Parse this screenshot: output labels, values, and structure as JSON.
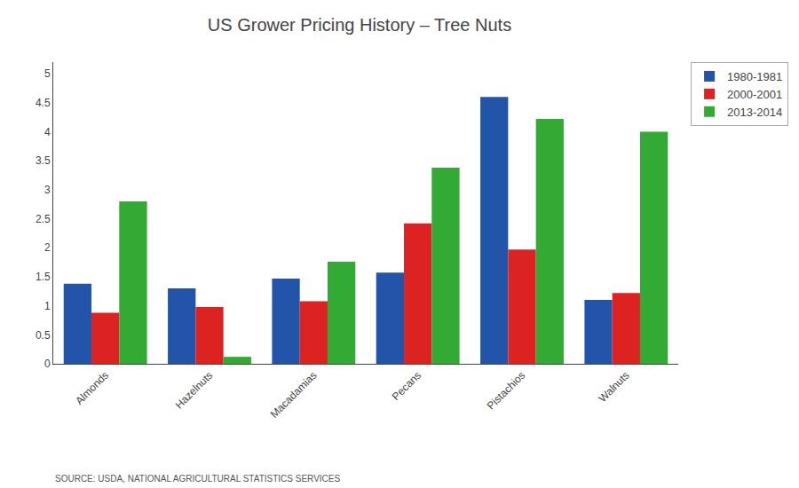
{
  "chart_data": {
    "type": "bar",
    "title": "US Grower Pricing History – Tree Nuts",
    "categories": [
      "Almonds",
      "Hazelnuts",
      "Macadamias",
      "Pecans",
      "Pistachios",
      "Walnuts"
    ],
    "series": [
      {
        "name": "1980-1981",
        "color": "#2255aa",
        "values": [
          1.38,
          1.3,
          1.47,
          1.57,
          4.6,
          1.1
        ]
      },
      {
        "name": "2000-2001",
        "color": "#dd2222",
        "values": [
          0.88,
          0.98,
          1.08,
          2.42,
          1.97,
          1.22
        ]
      },
      {
        "name": "2013-2014",
        "color": "#33aa33",
        "values": [
          2.8,
          0.12,
          1.76,
          3.38,
          4.22,
          4.0
        ]
      }
    ],
    "ylim": [
      0,
      5.2
    ],
    "yticks": [
      0,
      0.5,
      1,
      1.5,
      2,
      2.5,
      3,
      3.5,
      4,
      4.5,
      5
    ],
    "grid": false,
    "legend": "right",
    "annotations": [
      "SOURCE: USDA, NATIONAL AGRICULTURAL STATISTICS SERVICES"
    ]
  }
}
